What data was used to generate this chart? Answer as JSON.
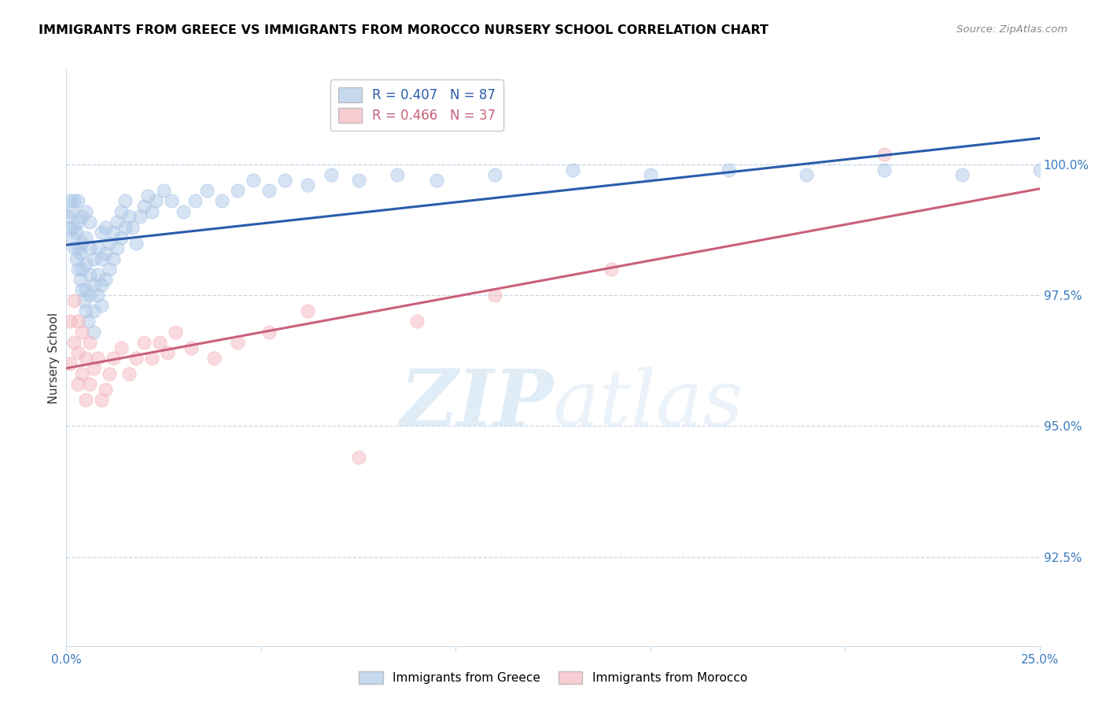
{
  "title": "IMMIGRANTS FROM GREECE VS IMMIGRANTS FROM MOROCCO NURSERY SCHOOL CORRELATION CHART",
  "source": "Source: ZipAtlas.com",
  "ylabel": "Nursery School",
  "ytick_labels": [
    "92.5%",
    "95.0%",
    "97.5%",
    "100.0%"
  ],
  "ytick_values": [
    0.925,
    0.95,
    0.975,
    1.0
  ],
  "xlim": [
    0.0,
    0.25
  ],
  "ylim": [
    0.908,
    1.018
  ],
  "greece_R": 0.407,
  "greece_N": 87,
  "morocco_R": 0.466,
  "morocco_N": 37,
  "greece_color": "#aec9e8",
  "morocco_color": "#f4b8c1",
  "greece_line_color": "#2a5caa",
  "morocco_line_color": "#c9607a",
  "legend_label_greece": "Immigrants from Greece",
  "legend_label_morocco": "Immigrants from Morocco",
  "watermark_zip": "ZIP",
  "watermark_atlas": "atlas",
  "greece_x": [
    0.0005,
    0.001,
    0.001,
    0.0015,
    0.0015,
    0.002,
    0.002,
    0.002,
    0.0025,
    0.0025,
    0.003,
    0.003,
    0.003,
    0.003,
    0.0035,
    0.0035,
    0.004,
    0.004,
    0.004,
    0.004,
    0.0045,
    0.005,
    0.005,
    0.005,
    0.005,
    0.005,
    0.0055,
    0.006,
    0.006,
    0.006,
    0.006,
    0.007,
    0.007,
    0.007,
    0.007,
    0.008,
    0.008,
    0.008,
    0.009,
    0.009,
    0.009,
    0.009,
    0.01,
    0.01,
    0.01,
    0.011,
    0.011,
    0.012,
    0.012,
    0.013,
    0.013,
    0.014,
    0.014,
    0.015,
    0.015,
    0.016,
    0.017,
    0.018,
    0.019,
    0.02,
    0.021,
    0.022,
    0.023,
    0.025,
    0.027,
    0.03,
    0.033,
    0.036,
    0.04,
    0.044,
    0.048,
    0.052,
    0.056,
    0.062,
    0.068,
    0.075,
    0.085,
    0.095,
    0.11,
    0.13,
    0.15,
    0.17,
    0.19,
    0.21,
    0.23,
    0.25,
    0.27
  ],
  "greece_y": [
    0.99,
    0.988,
    0.993,
    0.986,
    0.991,
    0.984,
    0.988,
    0.993,
    0.982,
    0.987,
    0.98,
    0.984,
    0.989,
    0.993,
    0.978,
    0.983,
    0.976,
    0.98,
    0.985,
    0.99,
    0.974,
    0.972,
    0.976,
    0.981,
    0.986,
    0.991,
    0.97,
    0.975,
    0.979,
    0.984,
    0.989,
    0.968,
    0.972,
    0.977,
    0.982,
    0.975,
    0.979,
    0.984,
    0.973,
    0.977,
    0.982,
    0.987,
    0.978,
    0.983,
    0.988,
    0.98,
    0.985,
    0.982,
    0.987,
    0.984,
    0.989,
    0.986,
    0.991,
    0.988,
    0.993,
    0.99,
    0.988,
    0.985,
    0.99,
    0.992,
    0.994,
    0.991,
    0.993,
    0.995,
    0.993,
    0.991,
    0.993,
    0.995,
    0.993,
    0.995,
    0.997,
    0.995,
    0.997,
    0.996,
    0.998,
    0.997,
    0.998,
    0.997,
    0.998,
    0.999,
    0.998,
    0.999,
    0.998,
    0.999,
    0.998,
    0.999,
    0.998
  ],
  "morocco_x": [
    0.001,
    0.001,
    0.002,
    0.002,
    0.003,
    0.003,
    0.003,
    0.004,
    0.004,
    0.005,
    0.005,
    0.006,
    0.006,
    0.007,
    0.008,
    0.009,
    0.01,
    0.011,
    0.012,
    0.014,
    0.016,
    0.018,
    0.02,
    0.022,
    0.024,
    0.026,
    0.028,
    0.032,
    0.038,
    0.044,
    0.052,
    0.062,
    0.075,
    0.09,
    0.11,
    0.14,
    0.21
  ],
  "morocco_y": [
    0.97,
    0.962,
    0.966,
    0.974,
    0.958,
    0.964,
    0.97,
    0.96,
    0.968,
    0.955,
    0.963,
    0.958,
    0.966,
    0.961,
    0.963,
    0.955,
    0.957,
    0.96,
    0.963,
    0.965,
    0.96,
    0.963,
    0.966,
    0.963,
    0.966,
    0.964,
    0.968,
    0.965,
    0.963,
    0.966,
    0.968,
    0.972,
    0.944,
    0.97,
    0.975,
    0.98,
    1.002
  ]
}
